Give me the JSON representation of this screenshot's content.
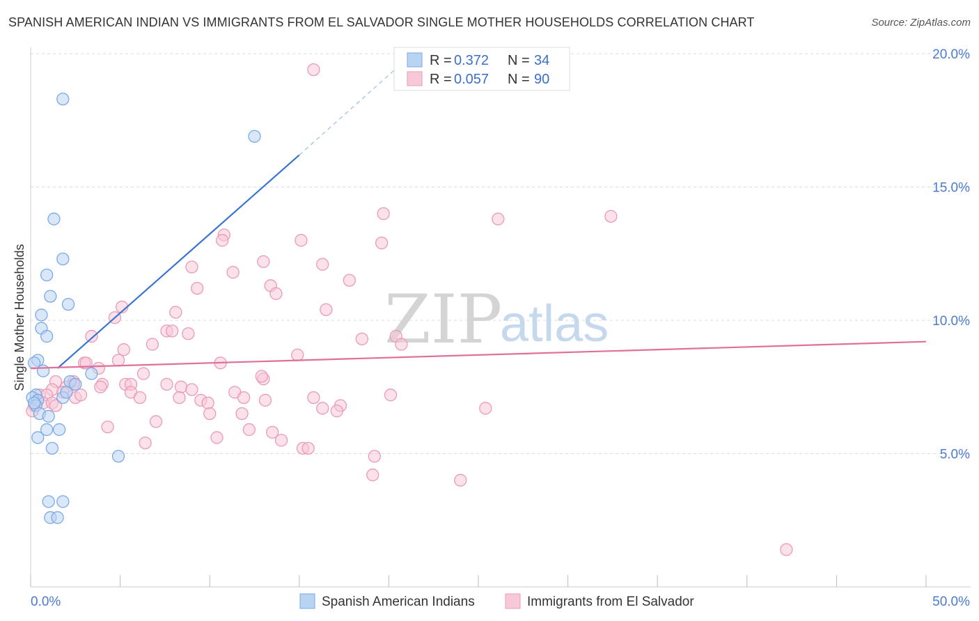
{
  "title": "SPANISH AMERICAN INDIAN VS IMMIGRANTS FROM EL SALVADOR SINGLE MOTHER HOUSEHOLDS CORRELATION CHART",
  "source": "Source: ZipAtlas.com",
  "watermark": {
    "zip": "ZIP",
    "atlas": "atlas"
  },
  "chart_data": {
    "type": "scatter",
    "ylabel": "Single Mother Households",
    "xlim": [
      0,
      50
    ],
    "ylim": [
      0,
      20.5
    ],
    "x_tick_labels": [
      {
        "value": 0,
        "label": "0.0%"
      },
      {
        "value": 50,
        "label": "50.0%"
      }
    ],
    "y_ticks": [
      {
        "value": 5,
        "label": "5.0%"
      },
      {
        "value": 10,
        "label": "10.0%"
      },
      {
        "value": 15,
        "label": "15.0%"
      },
      {
        "value": 20,
        "label": "20.0%"
      }
    ],
    "legend": [
      {
        "r_label": "R =",
        "r": "0.372",
        "n_label": "N =",
        "n": "34"
      },
      {
        "r_label": "R =",
        "r": "0.057",
        "n_label": "N =",
        "n": "90"
      }
    ],
    "series": [
      {
        "name": "Spanish American Indians",
        "color": "#7aaae6",
        "fill": "#b9d3f3",
        "line_color": "#3a74d0",
        "trend": {
          "x0": 1.5,
          "y0": 8.2,
          "x1": 15.0,
          "y1": 16.2,
          "dash_x_end": 21.0,
          "dash_y_end": 19.8
        },
        "points": [
          [
            1.8,
            18.3
          ],
          [
            12.5,
            16.9
          ],
          [
            1.3,
            13.8
          ],
          [
            1.8,
            12.3
          ],
          [
            0.9,
            11.7
          ],
          [
            1.1,
            10.9
          ],
          [
            2.1,
            10.6
          ],
          [
            0.6,
            10.2
          ],
          [
            0.6,
            9.7
          ],
          [
            0.9,
            9.4
          ],
          [
            0.4,
            8.5
          ],
          [
            0.2,
            8.4
          ],
          [
            0.7,
            8.1
          ],
          [
            3.4,
            8.0
          ],
          [
            2.2,
            7.7
          ],
          [
            2.5,
            7.6
          ],
          [
            0.3,
            7.2
          ],
          [
            0.1,
            7.1
          ],
          [
            0.4,
            7.0
          ],
          [
            1.8,
            7.1
          ],
          [
            0.3,
            6.8
          ],
          [
            0.5,
            6.5
          ],
          [
            1.0,
            6.4
          ],
          [
            0.9,
            5.9
          ],
          [
            1.6,
            5.9
          ],
          [
            0.4,
            5.6
          ],
          [
            1.2,
            5.2
          ],
          [
            4.9,
            4.9
          ],
          [
            1.0,
            3.2
          ],
          [
            1.8,
            3.2
          ],
          [
            1.1,
            2.6
          ],
          [
            1.5,
            2.6
          ],
          [
            2.0,
            7.3
          ],
          [
            0.2,
            6.9
          ]
        ]
      },
      {
        "name": "Immigrants from El Salvador",
        "color": "#eb9ab5",
        "fill": "#f7c9d8",
        "line_color": "#e07099",
        "trend": {
          "x0": 0,
          "y0": 8.2,
          "x1": 50,
          "y1": 9.2
        },
        "points": [
          [
            15.8,
            19.4
          ],
          [
            19.7,
            14.0
          ],
          [
            26.1,
            13.8
          ],
          [
            32.4,
            13.9
          ],
          [
            10.8,
            13.2
          ],
          [
            10.7,
            13.0
          ],
          [
            15.1,
            13.0
          ],
          [
            19.6,
            12.9
          ],
          [
            13.0,
            12.2
          ],
          [
            16.3,
            12.1
          ],
          [
            9.0,
            12.0
          ],
          [
            11.3,
            11.8
          ],
          [
            17.8,
            11.5
          ],
          [
            13.4,
            11.3
          ],
          [
            9.3,
            11.2
          ],
          [
            13.7,
            11.0
          ],
          [
            5.1,
            10.5
          ],
          [
            16.5,
            10.4
          ],
          [
            8.1,
            10.3
          ],
          [
            4.7,
            10.1
          ],
          [
            7.6,
            9.6
          ],
          [
            7.9,
            9.6
          ],
          [
            3.4,
            9.4
          ],
          [
            8.8,
            9.5
          ],
          [
            18.5,
            9.3
          ],
          [
            20.4,
            9.4
          ],
          [
            20.7,
            9.1
          ],
          [
            6.8,
            9.1
          ],
          [
            5.2,
            8.9
          ],
          [
            14.9,
            8.7
          ],
          [
            3.0,
            8.4
          ],
          [
            4.9,
            8.5
          ],
          [
            10.6,
            8.4
          ],
          [
            3.8,
            8.2
          ],
          [
            6.3,
            8.0
          ],
          [
            13.0,
            7.8
          ],
          [
            12.9,
            7.9
          ],
          [
            2.4,
            7.7
          ],
          [
            1.4,
            7.7
          ],
          [
            4.0,
            7.6
          ],
          [
            7.6,
            7.6
          ],
          [
            2.0,
            7.5
          ],
          [
            2.4,
            7.6
          ],
          [
            3.9,
            7.5
          ],
          [
            5.3,
            7.6
          ],
          [
            5.6,
            7.6
          ],
          [
            8.4,
            7.5
          ],
          [
            9.0,
            7.4
          ],
          [
            1.2,
            7.4
          ],
          [
            1.8,
            7.3
          ],
          [
            0.5,
            7.2
          ],
          [
            0.9,
            7.2
          ],
          [
            5.6,
            7.3
          ],
          [
            6.1,
            7.1
          ],
          [
            8.3,
            7.1
          ],
          [
            11.4,
            7.3
          ],
          [
            11.9,
            7.1
          ],
          [
            2.5,
            7.1
          ],
          [
            2.8,
            7.2
          ],
          [
            15.8,
            7.1
          ],
          [
            20.1,
            7.2
          ],
          [
            9.5,
            7.0
          ],
          [
            13.1,
            7.0
          ],
          [
            0.4,
            7.0
          ],
          [
            0.7,
            6.9
          ],
          [
            1.2,
            6.9
          ],
          [
            9.9,
            6.9
          ],
          [
            0.2,
            6.8
          ],
          [
            17.3,
            6.8
          ],
          [
            25.4,
            6.7
          ],
          [
            16.3,
            6.7
          ],
          [
            17.1,
            6.6
          ],
          [
            10.0,
            6.5
          ],
          [
            11.8,
            6.5
          ],
          [
            7.0,
            6.2
          ],
          [
            4.3,
            6.0
          ],
          [
            12.2,
            5.9
          ],
          [
            13.5,
            5.8
          ],
          [
            10.4,
            5.6
          ],
          [
            14.0,
            5.5
          ],
          [
            6.4,
            5.4
          ],
          [
            15.2,
            5.2
          ],
          [
            15.5,
            5.2
          ],
          [
            19.2,
            4.9
          ],
          [
            19.1,
            4.2
          ],
          [
            24.0,
            4.0
          ],
          [
            42.2,
            1.4
          ],
          [
            0.1,
            6.6
          ],
          [
            1.4,
            6.8
          ],
          [
            3.1,
            8.4
          ]
        ]
      }
    ]
  },
  "bottom_legend": [
    "Spanish American Indians",
    "Immigrants from El Salvador"
  ]
}
